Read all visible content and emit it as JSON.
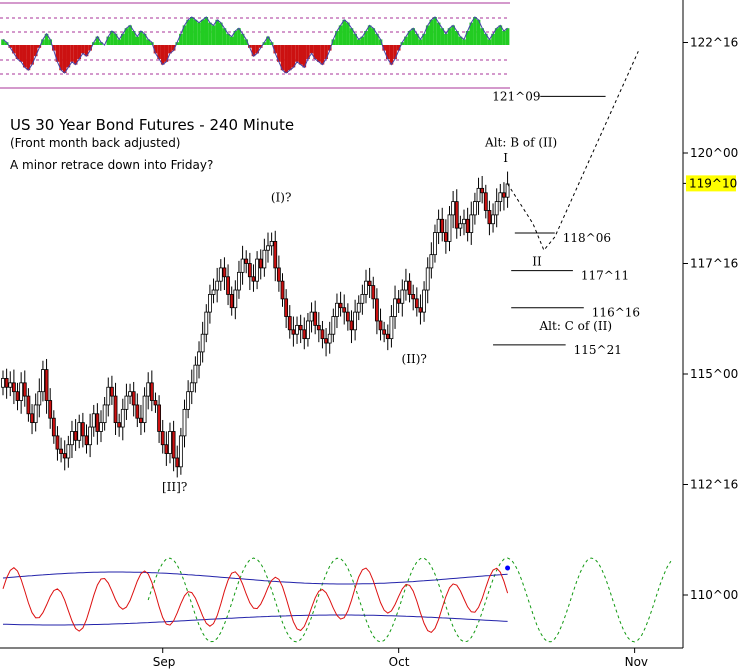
{
  "chart_data": {
    "type": "candlestick",
    "title": "US 30 Year Bond Futures - 240 Minute",
    "subtitle": "(Front month back adjusted)",
    "note": "A minor retrace down into Friday?",
    "y_axis": {
      "ylim": [
        109.0,
        124.0
      ],
      "ticks": [
        {
          "value": 122.5,
          "label": "122^16"
        },
        {
          "value": 120.0,
          "label": "120^00"
        },
        {
          "value": 117.5,
          "label": "117^16"
        },
        {
          "value": 115.0,
          "label": "115^00"
        },
        {
          "value": 112.5,
          "label": "112^16"
        },
        {
          "value": 110.0,
          "label": "110^00"
        }
      ],
      "current_price": {
        "value": 119.3125,
        "label": "119^10",
        "color": "#ffff00"
      }
    },
    "x_axis": {
      "ticks": [
        {
          "label": "Sep",
          "index": 44
        },
        {
          "label": "Oct",
          "index": 109
        },
        {
          "label": "Nov",
          "index": 174
        }
      ]
    },
    "price_series": [
      114.9,
      114.7,
      114.8,
      114.6,
      114.4,
      114.8,
      114.5,
      114.1,
      113.9,
      114.3,
      114.6,
      115.1,
      114.4,
      114.0,
      113.6,
      113.3,
      113.2,
      113.1,
      113.4,
      113.7,
      113.5,
      113.9,
      113.6,
      113.4,
      113.8,
      114.1,
      113.7,
      113.9,
      114.3,
      114.7,
      114.5,
      113.9,
      113.8,
      114.2,
      114.5,
      114.6,
      114.3,
      114.0,
      113.9,
      114.5,
      114.8,
      114.4,
      114.3,
      113.7,
      113.4,
      113.2,
      113.7,
      113.1,
      112.9,
      113.6,
      114.2,
      114.6,
      114.8,
      115.2,
      115.5,
      115.9,
      116.4,
      116.8,
      116.9,
      117.1,
      117.4,
      117.2,
      116.8,
      116.5,
      116.9,
      117.3,
      117.6,
      117.5,
      117.2,
      117.1,
      117.6,
      117.4,
      117.8,
      117.9,
      118.0,
      117.4,
      117.1,
      116.7,
      116.3,
      116.0,
      115.9,
      116.1,
      116.0,
      115.8,
      116.2,
      116.4,
      116.1,
      116.0,
      115.8,
      115.7,
      115.9,
      116.3,
      116.6,
      116.5,
      116.4,
      116.2,
      116.0,
      116.4,
      116.6,
      116.8,
      117.1,
      117.0,
      116.7,
      116.2,
      116.0,
      115.9,
      115.8,
      116.3,
      116.7,
      116.6,
      116.9,
      117.1,
      116.8,
      116.7,
      116.5,
      116.4,
      116.9,
      117.4,
      117.7,
      118.2,
      118.5,
      118.2,
      118.0,
      118.6,
      118.9,
      118.3,
      118.4,
      118.5,
      118.2,
      118.6,
      118.9,
      119.2,
      119.1,
      118.7,
      118.4,
      118.6,
      118.9,
      119.1,
      119.0,
      119.3
    ],
    "projection": {
      "style": "dashed",
      "points": [
        [
          139,
          119.3
        ],
        [
          146,
          118.4
        ],
        [
          149,
          117.8
        ],
        [
          152,
          118.1
        ],
        [
          175,
          122.3
        ]
      ]
    },
    "levels": [
      {
        "label": "121^09",
        "value": 121.28,
        "i0": 148,
        "i1": 166
      },
      {
        "label": "118^06",
        "value": 118.19,
        "i0": 141,
        "i1": 152
      },
      {
        "label": "117^11",
        "value": 117.34,
        "i0": 140,
        "i1": 157
      },
      {
        "label": "116^16",
        "value": 116.5,
        "i0": 140,
        "i1": 160
      },
      {
        "label": "115^21",
        "value": 115.66,
        "i0": 135,
        "i1": 155
      }
    ],
    "wave_labels": [
      {
        "text": "[II]?",
        "index": 46,
        "value": 112.35
      },
      {
        "text": "(I)?",
        "index": 76,
        "value": 118.9
      },
      {
        "text": "(II)?",
        "index": 112,
        "value": 115.25
      },
      {
        "text": "I",
        "index": 140,
        "value": 119.8
      },
      {
        "text": "Alt: B of (II)",
        "index": 135,
        "value": 120.15
      },
      {
        "text": "II",
        "index": 148,
        "value": 117.45
      },
      {
        "text": "Alt: C of (II)",
        "index": 150,
        "value": 116.0
      }
    ],
    "upper_oscillator": {
      "type": "histogram",
      "pos_color": "#22cc22",
      "neg_color": "#cc1111",
      "line_color": "#4444aa",
      "guide_color": "#aa3399",
      "values": [
        0.2,
        0.1,
        -0.1,
        -0.3,
        -0.5,
        -0.6,
        -0.8,
        -0.9,
        -0.7,
        -0.4,
        -0.1,
        0.2,
        0.4,
        0.2,
        -0.2,
        -0.6,
        -0.9,
        -1.0,
        -0.8,
        -0.6,
        -0.7,
        -0.5,
        -0.3,
        -0.4,
        -0.2,
        0.1,
        0.3,
        0.1,
        0.0,
        0.3,
        0.5,
        0.4,
        0.2,
        0.4,
        0.6,
        0.7,
        0.5,
        0.3,
        0.5,
        0.4,
        0.2,
        0.1,
        -0.3,
        -0.5,
        -0.7,
        -0.6,
        -0.3,
        -0.2,
        0.1,
        0.4,
        0.7,
        0.9,
        1.0,
        0.9,
        0.8,
        0.9,
        1.0,
        0.8,
        0.7,
        0.9,
        0.8,
        0.6,
        0.4,
        0.3,
        0.5,
        0.6,
        0.4,
        0.2,
        -0.1,
        -0.4,
        -0.3,
        -0.1,
        0.1,
        0.3,
        0.1,
        -0.3,
        -0.6,
        -0.9,
        -1.0,
        -0.9,
        -0.8,
        -0.6,
        -0.7,
        -0.8,
        -0.5,
        -0.3,
        -0.5,
        -0.6,
        -0.7,
        -0.5,
        -0.2,
        0.2,
        0.5,
        0.7,
        0.9,
        0.8,
        0.6,
        0.4,
        0.2,
        0.3,
        0.5,
        0.7,
        0.6,
        0.4,
        0.2,
        -0.2,
        -0.5,
        -0.7,
        -0.5,
        -0.2,
        0.1,
        0.3,
        0.5,
        0.6,
        0.4,
        0.2,
        0.4,
        0.7,
        0.9,
        1.0,
        0.8,
        0.6,
        0.4,
        0.6,
        0.7,
        0.5,
        0.3,
        0.2,
        0.5,
        0.8,
        1.0,
        0.9,
        0.6,
        0.4,
        0.2,
        0.4,
        0.6,
        0.7,
        0.5,
        0.6
      ]
    },
    "lower_oscillator": {
      "series": [
        {
          "color": "#dd1111",
          "style": "solid",
          "values_ref": "computed-fast-cycle"
        },
        {
          "color": "#2222aa",
          "style": "solid",
          "values_ref": "upper-band"
        },
        {
          "color": "#2222aa",
          "style": "solid",
          "values_ref": "lower-band"
        },
        {
          "color": "#119911",
          "style": "dashed",
          "values_ref": "projected-cycle"
        }
      ],
      "last_point_color": "#0000ff"
    }
  }
}
